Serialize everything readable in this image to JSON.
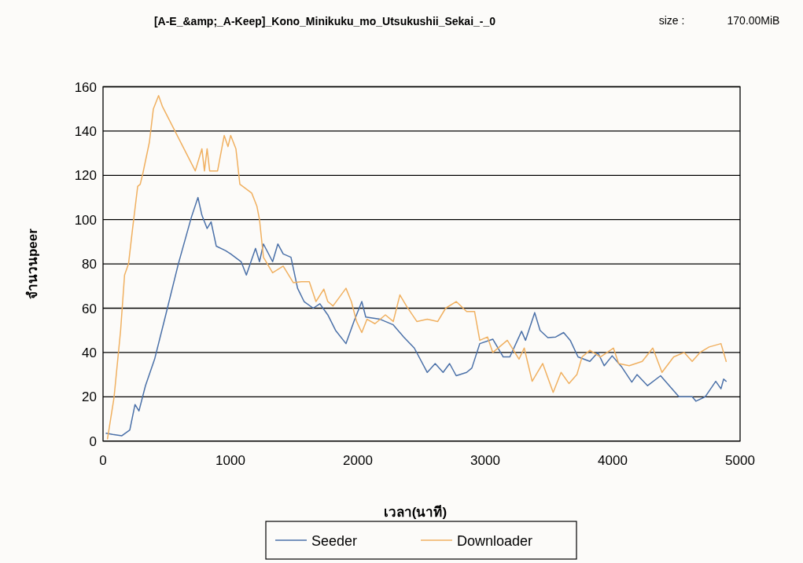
{
  "chart_data": {
    "type": "line",
    "title": "[A-E_&amp;_A-Keep]_Kono_Minikuku_mo_Utsukushii_Sekai_-_0",
    "annotations": [
      "size :",
      "170.00MiB"
    ],
    "xlabel": "เวลา(นาที)",
    "ylabel": "จำนวนpeer",
    "xlim": [
      0,
      5000
    ],
    "xticks": [
      0,
      1000,
      2000,
      3000,
      4000,
      5000
    ],
    "ylim": [
      0,
      160
    ],
    "yticks": [
      0,
      20,
      40,
      60,
      80,
      100,
      120,
      140,
      160
    ],
    "grid": "y",
    "legend": "bottom",
    "line_style": "solid",
    "series": [
      {
        "name": "Seeder",
        "color": "#4a70a8",
        "x": [
          25,
          76,
          148,
          210,
          251,
          282,
          333,
          405,
          488,
          591,
          693,
          745,
          776,
          817,
          848,
          889,
          961,
          1002,
          1084,
          1125,
          1197,
          1228,
          1259,
          1331,
          1372,
          1414,
          1475,
          1527,
          1578,
          1650,
          1702,
          1764,
          1825,
          1907,
          1969,
          2031,
          2062,
          2175,
          2278,
          2360,
          2443,
          2545,
          2607,
          2669,
          2720,
          2772,
          2854,
          2895,
          2957,
          3059,
          3141,
          3193,
          3285,
          3316,
          3388,
          3430,
          3491,
          3553,
          3615,
          3667,
          3728,
          3821,
          3883,
          3934,
          3996,
          4068,
          4150,
          4191,
          4274,
          4376,
          4520,
          4624,
          4654,
          4726,
          4809,
          4850,
          4871,
          4891
        ],
        "values": [
          3.5,
          3,
          2.4,
          5,
          16.5,
          13.6,
          25,
          37,
          56,
          80,
          101,
          110,
          102,
          96,
          99,
          88,
          86,
          84.5,
          81,
          75,
          87,
          81,
          89,
          81,
          89,
          84.5,
          83,
          69,
          63,
          60,
          62,
          57,
          50,
          44,
          54,
          63,
          56,
          55,
          52.5,
          47,
          42,
          31,
          35,
          31,
          35,
          29.5,
          31,
          33,
          44,
          46,
          38,
          38,
          49.6,
          45.5,
          58,
          50,
          46.7,
          47,
          49,
          45.5,
          38,
          36,
          40,
          34,
          38.5,
          33.7,
          26.6,
          30,
          25,
          29.5,
          20,
          20,
          18,
          20,
          27,
          23.6,
          28,
          27
        ]
      },
      {
        "name": "Downloader",
        "color": "#f0b060",
        "x": [
          35,
          86,
          138,
          169,
          200,
          230,
          272,
          292,
          313,
          364,
          395,
          436,
          467,
          724,
          776,
          796,
          817,
          837,
          899,
          951,
          981,
          1002,
          1043,
          1074,
          1167,
          1208,
          1228,
          1259,
          1290,
          1331,
          1414,
          1494,
          1557,
          1619,
          1671,
          1733,
          1764,
          1805,
          1907,
          1949,
          1990,
          2031,
          2072,
          2134,
          2216,
          2278,
          2330,
          2381,
          2463,
          2545,
          2627,
          2689,
          2772,
          2854,
          2916,
          2957,
          3018,
          3059,
          3173,
          3265,
          3306,
          3368,
          3409,
          3451,
          3533,
          3595,
          3657,
          3719,
          3760,
          3821,
          3904,
          4006,
          4047,
          4130,
          4232,
          4315,
          4387,
          4479,
          4562,
          4624,
          4685,
          4757,
          4850,
          4891
        ],
        "values": [
          1,
          19.5,
          50,
          75,
          80,
          95,
          115,
          116,
          121,
          135,
          150,
          156,
          151,
          122,
          132,
          122,
          132,
          122,
          122,
          138,
          133,
          138,
          132,
          116,
          112,
          106,
          100,
          83,
          80,
          76,
          79,
          71.5,
          72,
          72,
          63,
          68.6,
          63,
          61,
          69,
          63,
          54,
          49,
          55,
          53,
          57,
          54,
          66,
          61,
          54,
          55,
          54,
          60,
          63,
          58.5,
          58.5,
          45.5,
          47,
          40,
          45.5,
          37,
          42,
          27,
          31,
          35,
          22,
          31,
          26,
          30,
          38,
          41,
          38,
          42,
          35,
          34,
          36,
          42,
          31,
          38,
          40,
          36,
          40,
          42.5,
          44,
          36
        ]
      }
    ]
  }
}
